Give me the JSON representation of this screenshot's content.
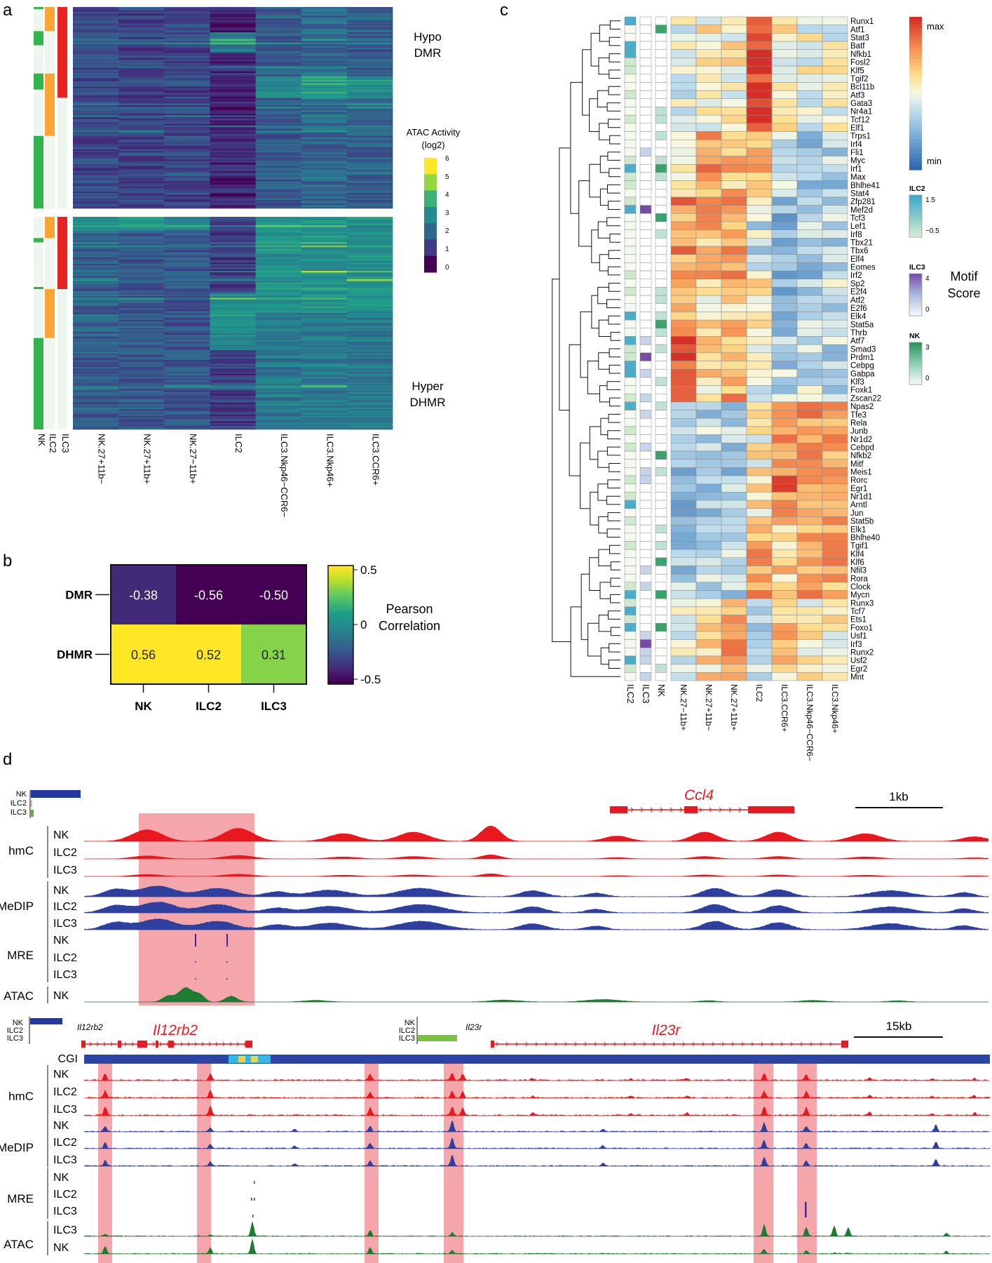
{
  "figure": {
    "panel_labels": [
      "a",
      "b",
      "c",
      "d"
    ]
  },
  "chart_data": [
    {
      "id": "a",
      "type": "heatmap",
      "title": "ATAC Activity across DMR / DHMR",
      "blocks": [
        {
          "label_lines": [
            "Hypo",
            "DMR"
          ]
        },
        {
          "label_lines": [
            "Hyper",
            "DHMR"
          ]
        }
      ],
      "annotation_columns": [
        "NK",
        "ILC2",
        "ILC3"
      ],
      "annotation_colors": {
        "NK": "#33b44a",
        "ILC2": "#f9a533",
        "ILC3": "#e52421",
        "bg": "#eef7ee"
      },
      "columns": [
        "NK.27+11b−",
        "NK.27+11b+",
        "NK.27−11b+",
        "ILC2",
        "ILC3.Nkp46−CCR6−",
        "ILC3.Nkp46+",
        "ILC3.CCR6+"
      ],
      "colorbar": {
        "title_lines": [
          "ATAC Activity",
          "(log2)"
        ],
        "ticks": [
          "6",
          "5",
          "4",
          "3",
          "2",
          "1",
          "0"
        ],
        "range": [
          0,
          6
        ]
      }
    },
    {
      "id": "b",
      "type": "heatmap",
      "rows": [
        "DMR",
        "DHMR"
      ],
      "columns": [
        "NK",
        "ILC2",
        "ILC3"
      ],
      "values": [
        [
          -0.38,
          -0.56,
          -0.5
        ],
        [
          0.56,
          0.52,
          0.31
        ]
      ],
      "labels": [
        [
          "-0.38",
          "-0.56",
          "-0.50"
        ],
        [
          "0.56",
          "0.52",
          "0.31"
        ]
      ],
      "colorbar": {
        "title_lines": [
          "Pearson",
          "Correlation"
        ],
        "ticks": [
          "0.5",
          "0",
          "-0.5"
        ],
        "range": [
          -0.5,
          0.5
        ]
      }
    },
    {
      "id": "c",
      "type": "heatmap",
      "rows": [
        "Runx1",
        "Atf1",
        "Stat3",
        "Batf",
        "Nfkb1",
        "Fosl2",
        "Klf5",
        "Tgif2",
        "Bcl11b",
        "Atf3",
        "Gata3",
        "Nr4a1",
        "Tcf12",
        "Elf1",
        "Trps1",
        "Irf4",
        "Fli1",
        "Myc",
        "Irf1",
        "Max",
        "Bhlhe41",
        "Stat4",
        "Zfp281",
        "Mef2d",
        "Tcf3",
        "Lef1",
        "Irf8",
        "Tbx21",
        "Tbx6",
        "Elf4",
        "Eomes",
        "Irf2",
        "Sp2",
        "E2f4",
        "Atf2",
        "E2f6",
        "Elk4",
        "Stat5a",
        "Thrb",
        "Atf7",
        "Smad3",
        "Prdm1",
        "Cebpg",
        "Gabpa",
        "Klf3",
        "Foxk1",
        "Zscan22",
        "Npas2",
        "Tfe3",
        "Rela",
        "Junb",
        "Nr1d2",
        "Cebpd",
        "Nfkb2",
        "Mitf",
        "Meis1",
        "Rorc",
        "Egr1",
        "Nr1d1",
        "Arntl",
        "Jun",
        "Stat5b",
        "Elk1",
        "Bhlhe40",
        "Tgif1",
        "Klf4",
        "Klf6",
        "Nfil3",
        "Rora",
        "Clock",
        "Mycn",
        "Runx3",
        "Tcf7",
        "Ets1",
        "Foxo1",
        "Usf1",
        "Irf3",
        "Runx2",
        "Usf2",
        "Egr2",
        "Mnt"
      ],
      "annotation_columns": [
        "ILC2",
        "ILC3",
        "NK"
      ],
      "columns": [
        "NK.27−11b+",
        "NK.27+11b−",
        "NK.27+11b+",
        "ILC2",
        "ILC3.CCR6+",
        "ILC3.Nkp46−CCR6−",
        "ILC3.Nkp46+"
      ],
      "colorbar": {
        "max_label": "max",
        "min_label": "min"
      },
      "annotation_legends": [
        {
          "title": "ILC2",
          "ticks": [
            "1.5",
            "−0.5"
          ]
        },
        {
          "title": "ILC3",
          "ticks": [
            "4",
            "0"
          ]
        },
        {
          "title": "NK",
          "ticks": [
            "3",
            "0"
          ]
        }
      ],
      "score_label_lines": [
        "Motif",
        "Score"
      ]
    },
    {
      "id": "d",
      "type": "genome-tracks",
      "top": {
        "gene": "Ccl4",
        "scale_label": "1kb",
        "mini_rows": [
          "NK",
          "ILC2",
          "ILC3"
        ],
        "groups": [
          {
            "name": "hmC",
            "samples": [
              "NK",
              "ILC2",
              "ILC3"
            ]
          },
          {
            "name": "MeDIP",
            "samples": [
              "NK",
              "ILC2",
              "ILC3"
            ]
          },
          {
            "name": "MRE",
            "samples": [
              "NK",
              "ILC2",
              "ILC3"
            ]
          },
          {
            "name": "ATAC",
            "samples": [
              "NK"
            ]
          }
        ]
      },
      "bottom": {
        "genes": [
          "Il12rb2",
          "Il23r"
        ],
        "gene_small_labels": [
          "Il12rb2",
          "Il23r"
        ],
        "scale_label": "15kb",
        "cgi_label": "CGI",
        "mini_rows": [
          "NK",
          "ILC2",
          "ILC3"
        ],
        "groups": [
          {
            "name": "hmC",
            "samples": [
              "NK",
              "ILC2",
              "ILC3"
            ]
          },
          {
            "name": "MeDIP",
            "samples": [
              "NK",
              "ILC2",
              "ILC3"
            ]
          },
          {
            "name": "MRE",
            "samples": [
              "NK",
              "ILC2",
              "ILC3"
            ]
          },
          {
            "name": "ATAC",
            "samples": [
              "ILC3",
              "NK"
            ]
          }
        ]
      },
      "colors": {
        "hmC": "#e8191e",
        "MeDIP": "#2f3f9e",
        "MRE": "#3d2b8e",
        "ATAC": "#1f7a34",
        "highlight": "#f4a6ab",
        "gene": "#e51b23",
        "cgi": "#2b45a6",
        "cgi_island": "#37b6e8",
        "cgi_island2": "#f3d23c"
      }
    }
  ]
}
